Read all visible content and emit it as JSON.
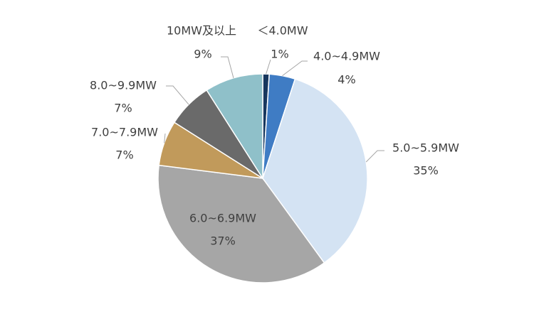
{
  "chart_data": {
    "type": "pie",
    "categories": [
      "＜4.0MW",
      "4.0~4.9MW",
      "5.0~5.9MW",
      "6.0~6.9MW",
      "7.0~7.9MW",
      "8.0~9.9MW",
      "10MW及以上"
    ],
    "values": [
      1,
      4,
      35,
      37,
      7,
      7,
      9
    ],
    "value_labels": [
      "1%",
      "4%",
      "35%",
      "37%",
      "7%",
      "7%",
      "9%"
    ],
    "colors": [
      "#17375e",
      "#3f7cc4",
      "#d4e3f3",
      "#a6a6a6",
      "#c19a5b",
      "#6a6a6a",
      "#8fc0c9"
    ]
  }
}
